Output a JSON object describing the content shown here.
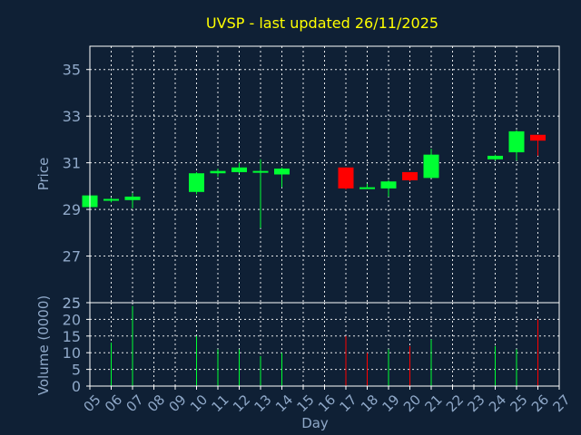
{
  "chart_data": [
    {
      "type": "candlestick",
      "title": "UVSP - last updated 26/11/2025",
      "ylabel": "Price",
      "ylim": [
        25,
        36
      ],
      "yticks": [
        25,
        27,
        29,
        31,
        33,
        35
      ],
      "grid": true,
      "colors": {
        "up": "#00ff33",
        "down": "#ff0000",
        "title": "#ffff00",
        "axis_text": "#8fa8c8",
        "grid": "#ffffff",
        "background": "#0f2035"
      },
      "candles": [
        {
          "day": "05",
          "open": 29.1,
          "high": 29.6,
          "low": 29.1,
          "close": 29.6
        },
        {
          "day": "06",
          "open": 29.4,
          "high": 29.5,
          "low": 29.3,
          "close": 29.45
        },
        {
          "day": "07",
          "open": 29.4,
          "high": 29.7,
          "low": 29.05,
          "close": 29.55
        },
        {
          "day": "10",
          "open": 29.75,
          "high": 30.6,
          "low": 29.65,
          "close": 30.55
        },
        {
          "day": "11",
          "open": 30.55,
          "high": 30.75,
          "low": 30.4,
          "close": 30.65
        },
        {
          "day": "12",
          "open": 30.6,
          "high": 31.0,
          "low": 30.55,
          "close": 30.8
        },
        {
          "day": "13",
          "open": 30.6,
          "high": 31.15,
          "low": 28.2,
          "close": 30.65
        },
        {
          "day": "14",
          "open": 30.5,
          "high": 30.8,
          "low": 29.95,
          "close": 30.75
        },
        {
          "day": "17",
          "open": 30.8,
          "high": 30.8,
          "low": 29.85,
          "close": 29.9
        },
        {
          "day": "18",
          "open": 29.95,
          "high": 30.1,
          "low": 29.9,
          "close": 29.95
        },
        {
          "day": "19",
          "open": 29.9,
          "high": 30.25,
          "low": 29.55,
          "close": 30.2
        },
        {
          "day": "20",
          "open": 30.6,
          "high": 30.6,
          "low": 30.2,
          "close": 30.25
        },
        {
          "day": "21",
          "open": 30.35,
          "high": 31.6,
          "low": 30.35,
          "close": 31.35
        },
        {
          "day": "24",
          "open": 31.15,
          "high": 31.35,
          "low": 31.1,
          "close": 31.3
        },
        {
          "day": "25",
          "open": 31.45,
          "high": 32.4,
          "low": 31.1,
          "close": 32.35
        },
        {
          "day": "26",
          "open": 32.2,
          "high": 32.2,
          "low": 31.3,
          "close": 31.95
        }
      ]
    },
    {
      "type": "bar",
      "ylabel": "Volume (0000)",
      "xlabel": "Day",
      "ylim": [
        0,
        25
      ],
      "yticks": [
        0,
        5,
        10,
        15,
        20,
        25
      ],
      "grid": true,
      "categories": [
        "05",
        "06",
        "07",
        "08",
        "09",
        "10",
        "11",
        "12",
        "13",
        "14",
        "15",
        "16",
        "17",
        "18",
        "19",
        "20",
        "21",
        "22",
        "23",
        "24",
        "25",
        "26",
        "27"
      ],
      "bars": [
        {
          "day": "06",
          "value": 13,
          "direction": "up"
        },
        {
          "day": "07",
          "value": 24,
          "direction": "up"
        },
        {
          "day": "10",
          "value": 15,
          "direction": "up"
        },
        {
          "day": "11",
          "value": 11,
          "direction": "up"
        },
        {
          "day": "12",
          "value": 11,
          "direction": "up"
        },
        {
          "day": "13",
          "value": 9,
          "direction": "up"
        },
        {
          "day": "14",
          "value": 10,
          "direction": "up"
        },
        {
          "day": "17",
          "value": 15,
          "direction": "down"
        },
        {
          "day": "18",
          "value": 10,
          "direction": "down"
        },
        {
          "day": "19",
          "value": 11,
          "direction": "up"
        },
        {
          "day": "20",
          "value": 12,
          "direction": "down"
        },
        {
          "day": "21",
          "value": 14,
          "direction": "up"
        },
        {
          "day": "24",
          "value": 12,
          "direction": "up"
        },
        {
          "day": "25",
          "value": 11,
          "direction": "up"
        },
        {
          "day": "26",
          "value": 20,
          "direction": "down"
        }
      ]
    }
  ]
}
